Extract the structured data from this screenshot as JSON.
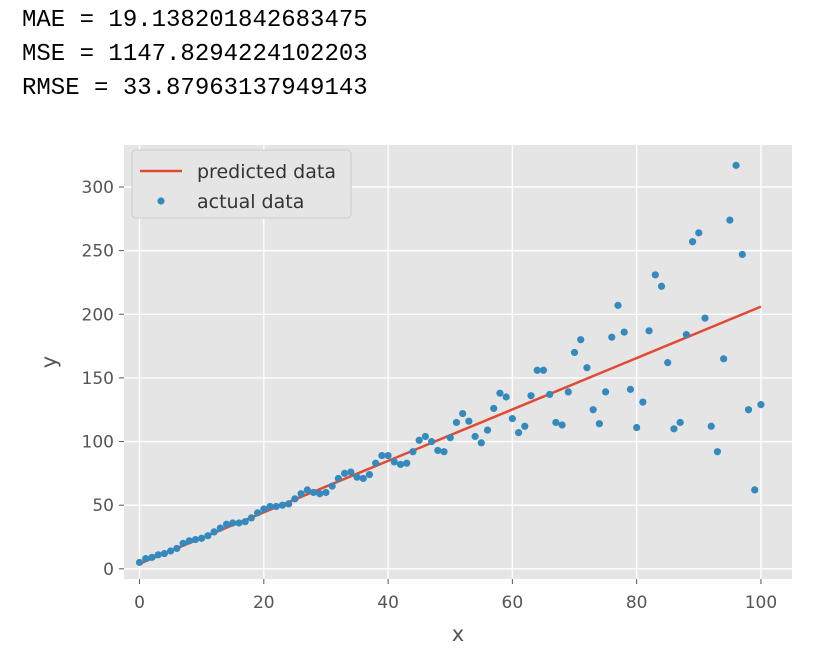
{
  "output": {
    "lines": [
      "MAE = 19.138201842683475",
      "MSE = 1147.8294224102203",
      "RMSE = 33.87963137949143"
    ]
  },
  "chart_data": {
    "type": "scatter",
    "title": "",
    "xlabel": "x",
    "ylabel": "y",
    "xlim": [
      -2.5,
      105
    ],
    "ylim": [
      -8,
      333
    ],
    "xticks": [
      0,
      20,
      40,
      60,
      80,
      100
    ],
    "yticks": [
      0,
      50,
      100,
      150,
      200,
      250,
      300
    ],
    "grid": true,
    "background": "#e5e5e5",
    "legend": {
      "placement": "top-left",
      "entries": [
        "predicted data",
        "actual data"
      ]
    },
    "series": [
      {
        "name": "predicted data",
        "kind": "line",
        "color": "#e24a33",
        "x": [
          0,
          100
        ],
        "y": [
          4,
          206
        ]
      },
      {
        "name": "actual data",
        "kind": "scatter",
        "color": "#348abd",
        "x": [
          0,
          1,
          2,
          3,
          4,
          5,
          6,
          7,
          8,
          9,
          10,
          11,
          12,
          13,
          14,
          15,
          16,
          17,
          18,
          19,
          20,
          21,
          22,
          23,
          24,
          25,
          26,
          27,
          28,
          29,
          30,
          31,
          32,
          33,
          34,
          35,
          36,
          37,
          38,
          39,
          40,
          41,
          42,
          43,
          44,
          45,
          46,
          47,
          48,
          49,
          50,
          51,
          52,
          53,
          54,
          55,
          56,
          57,
          58,
          59,
          60,
          61,
          62,
          63,
          64,
          65,
          66,
          67,
          68,
          69,
          70,
          71,
          72,
          73,
          74,
          75,
          76,
          77,
          78,
          79,
          80,
          81,
          82,
          83,
          84,
          85,
          86,
          87,
          88,
          89,
          90,
          91,
          92,
          93,
          94,
          95,
          96,
          97,
          98,
          99,
          100
        ],
        "y": [
          5,
          8,
          9,
          11,
          12,
          14,
          16,
          20,
          22,
          23,
          24,
          26,
          29,
          32,
          35,
          36,
          36,
          37,
          40,
          44,
          47,
          49,
          49,
          50,
          51,
          55,
          59,
          62,
          60,
          59,
          60,
          65,
          71,
          75,
          76,
          72,
          71,
          74,
          83,
          89,
          89,
          84,
          82,
          83,
          92,
          101,
          104,
          100,
          93,
          92,
          103,
          115,
          122,
          116,
          104,
          99,
          109,
          126,
          138,
          135,
          118,
          107,
          112,
          136,
          156,
          156,
          137,
          115,
          113,
          139,
          170,
          180,
          158,
          125,
          114,
          139,
          182,
          207,
          186,
          141,
          111,
          131,
          187,
          231,
          222,
          162,
          110,
          115,
          184,
          257,
          264,
          197,
          112,
          92,
          165,
          274,
          317,
          247,
          125,
          62,
          129
        ]
      }
    ]
  }
}
